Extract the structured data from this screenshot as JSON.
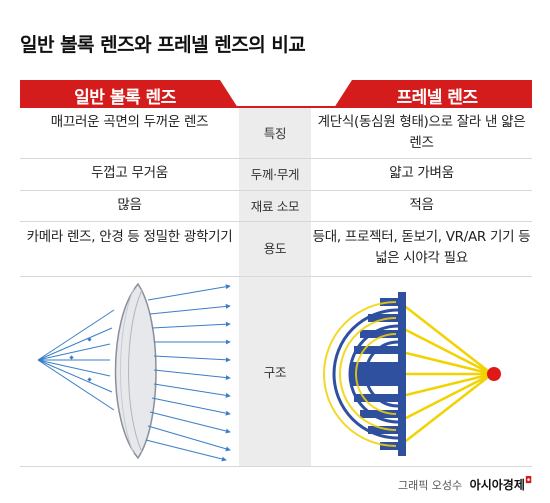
{
  "title": "일반 볼록 렌즈와 프레넬 렌즈의 비교",
  "columns": {
    "left": "일반 볼록 렌즈",
    "right": "프레넬 렌즈"
  },
  "rows": [
    {
      "left": "매끄러운 곡면의 두꺼운 렌즈",
      "label": "특징",
      "right": "계단식(동심원 형태)으로 잘라 낸 얇은 렌즈"
    },
    {
      "left": "두껍고 무거움",
      "label": "두께·무게",
      "right": "얇고 가벼움"
    },
    {
      "left": "많음",
      "label": "재료 소모",
      "right": "적음"
    },
    {
      "left": "카메라 렌즈, 안경 등 정밀한 광학기기",
      "label": "용도",
      "right": "등대, 프로젝터, 돋보기, VR/AR 기기 등 넓은 시야각 필요"
    },
    {
      "label": "구조"
    }
  ],
  "colors": {
    "accent_red": "#d41c1c",
    "lens_blue": "#2f4f9f",
    "ray_blue": "#3a7ec8",
    "ray_yellow": "#f2d200",
    "focus_red": "#e01818"
  },
  "footer": {
    "credit": "그래픽 오성수",
    "brand": "아시아경제"
  }
}
